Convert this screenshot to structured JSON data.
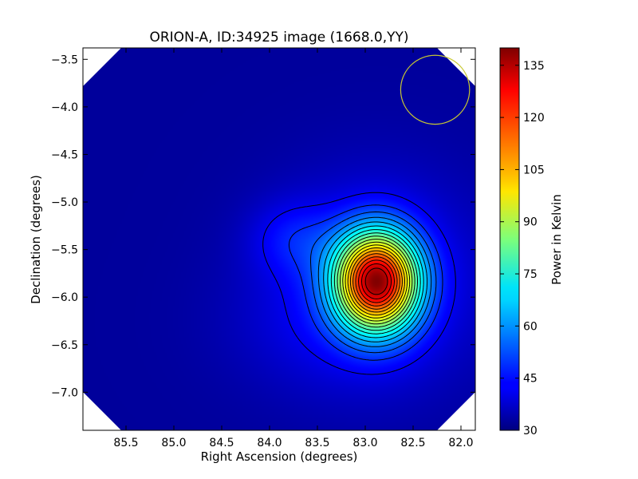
{
  "chart_data": {
    "type": "heatmap",
    "title": "ORION-A, ID:34925 image (1668.0,YY)",
    "xlabel": "Right Ascension (degrees)",
    "ylabel": "Declination (degrees)",
    "xlim": [
      85.95,
      81.85
    ],
    "ylim": [
      -7.4,
      -3.38
    ],
    "x_ticks": [
      85.5,
      85.0,
      84.5,
      84.0,
      83.5,
      83.0,
      82.5,
      82.0
    ],
    "x_tick_labels": [
      "85.5",
      "85.0",
      "84.5",
      "84.0",
      "83.5",
      "83.0",
      "82.5",
      "82.0"
    ],
    "y_ticks": [
      -3.5,
      -4.0,
      -4.5,
      -5.0,
      -5.5,
      -6.0,
      -6.5,
      -7.0
    ],
    "y_tick_labels": [
      "−3.5",
      "−4.0",
      "−4.5",
      "−5.0",
      "−5.5",
      "−6.0",
      "−6.5",
      "−7.0"
    ],
    "colormap": "jet",
    "colorbar": {
      "label": "Power in Kelvin",
      "min": 30,
      "max": 140,
      "ticks": [
        30,
        45,
        60,
        75,
        90,
        105,
        120,
        135
      ],
      "tick_labels": [
        "30",
        "45",
        "60",
        "75",
        "90",
        "105",
        "120",
        "135"
      ]
    },
    "background_level_K": 33,
    "peak": {
      "ra": 82.88,
      "dec": -5.83,
      "value_K": 138
    },
    "secondary_peak": {
      "ra": 83.75,
      "dec": -5.38,
      "value_K": 46
    },
    "contour_levels_K": [
      42,
      48,
      53,
      58,
      63,
      68,
      73,
      78,
      83,
      88,
      93,
      98,
      103,
      108,
      113,
      118,
      123,
      128,
      133
    ],
    "beam": {
      "ra": 82.27,
      "dec": -3.82,
      "radius_deg": 0.36,
      "color": "#c8c832"
    },
    "blank_corners": [
      "top-left",
      "top-right",
      "bottom-left",
      "bottom-right"
    ],
    "grid": false
  }
}
